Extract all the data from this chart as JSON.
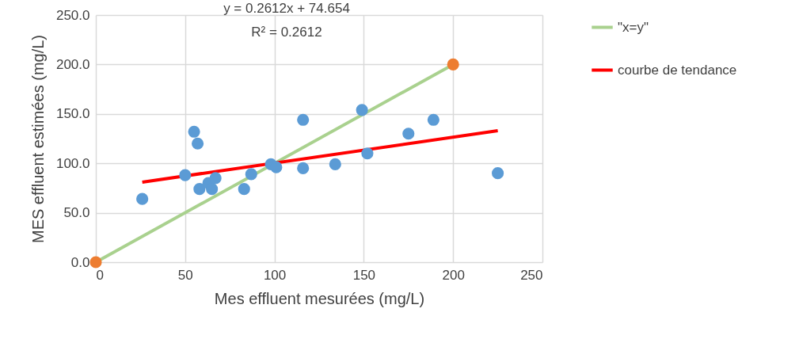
{
  "chart_data": {
    "type": "scatter",
    "xlabel": "Mes effluent mesurées (mg/L)",
    "ylabel": "MES effluent estimées (mg/L)",
    "annotations": [
      "y = 0.2612x + 74.654",
      "R² = 0.2612"
    ],
    "xlim": [
      0,
      250
    ],
    "ylim": [
      0,
      250
    ],
    "xticks": [
      0,
      50,
      100,
      150,
      200,
      250
    ],
    "yticks": [
      {
        "value": 0,
        "label": "0.0"
      },
      {
        "value": 50,
        "label": "50.0"
      },
      {
        "value": 100,
        "label": "100.0"
      },
      {
        "value": 150,
        "label": "150.0"
      },
      {
        "value": 200,
        "label": "200.0"
      },
      {
        "value": 250,
        "label": "250.0"
      }
    ],
    "grid": true,
    "legend": "right",
    "marker": "circle",
    "series": [
      {
        "type": "line",
        "marker": "none",
        "name": "\"x=y\"",
        "color": "#a9d18e",
        "x": [
          0,
          200
        ],
        "values": [
          0,
          200
        ]
      },
      {
        "type": "line",
        "marker": "none",
        "name": "courbe de tendance",
        "color": "#ff0000",
        "x": [
          26,
          225
        ],
        "values": [
          81,
          133
        ]
      },
      {
        "color": "#5b9bd5",
        "x": [
          26,
          50,
          55,
          57,
          58,
          63,
          65,
          67,
          83,
          87,
          98,
          101,
          116,
          116,
          134,
          149,
          152,
          175,
          189,
          225
        ],
        "values": [
          64,
          88,
          132,
          120,
          74,
          80,
          74,
          85,
          74,
          89,
          99,
          96,
          144,
          95,
          99,
          154,
          110,
          130,
          144,
          90
        ]
      },
      {
        "color": "#ed7d31",
        "x": [
          0,
          200
        ],
        "values": [
          0,
          200
        ]
      }
    ]
  }
}
